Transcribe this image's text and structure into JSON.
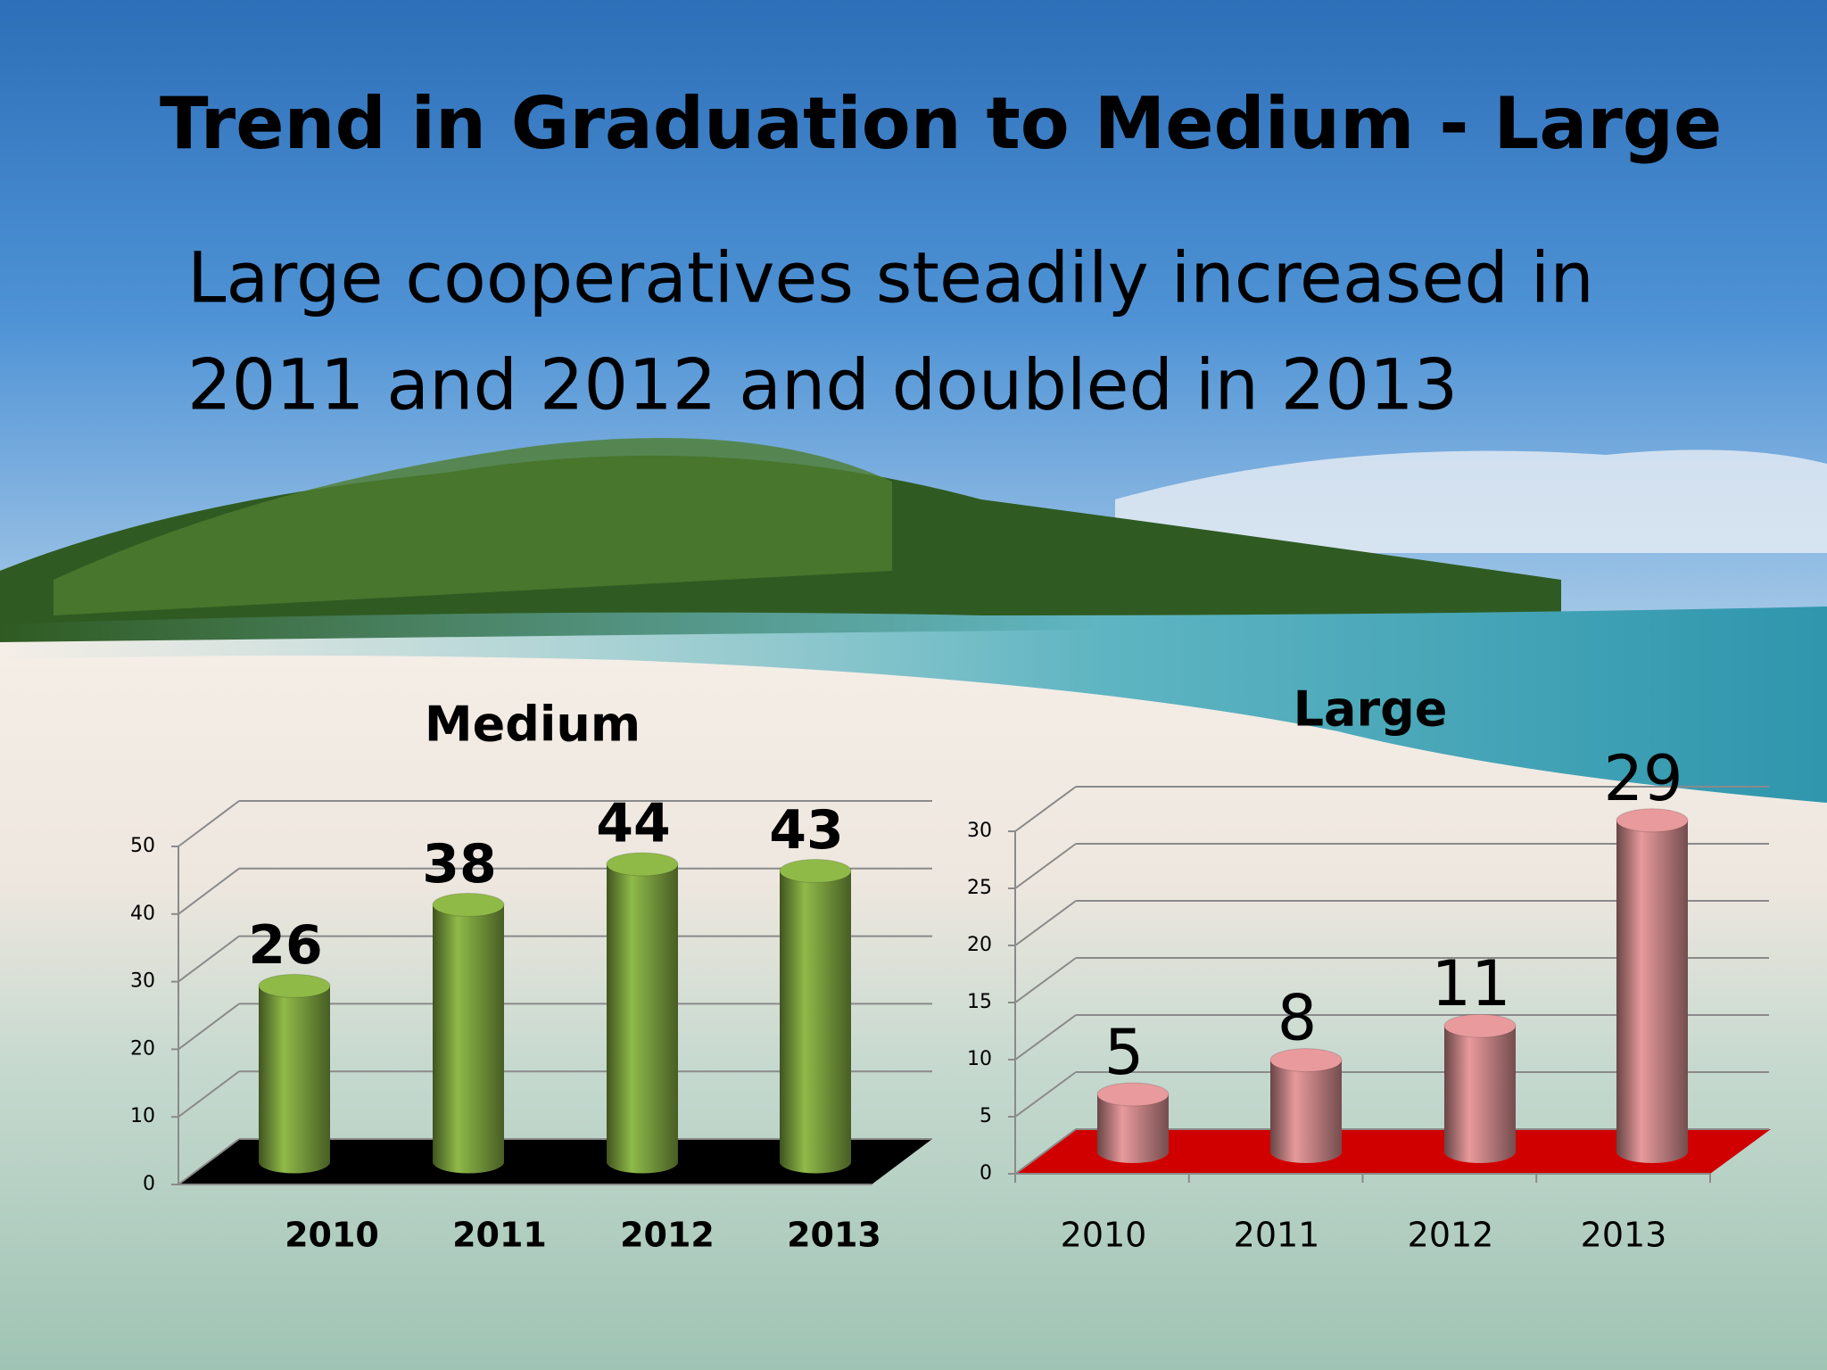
{
  "title": "Trend in Graduation to  Medium - Large",
  "subtitle": [
    "Large cooperatives steadily  increased in",
    "2011 and 2012 and doubled in 2013"
  ],
  "chart_data": [
    {
      "type": "bar",
      "title": "Medium",
      "categories": [
        "2010",
        "2011",
        "2012",
        "2013"
      ],
      "values": [
        26,
        38,
        44,
        43
      ],
      "color": "#8fba48",
      "floor_color": "#000000",
      "ylim": [
        0,
        50
      ],
      "yticks": [
        0,
        10,
        20,
        30,
        40,
        50
      ],
      "grid": true
    },
    {
      "type": "bar",
      "title": "Large",
      "categories": [
        "2010",
        "2011",
        "2012",
        "2013"
      ],
      "values": [
        5,
        8,
        11,
        29
      ],
      "color": "#e89a9c",
      "floor_color": "#d10000",
      "ylim": [
        0,
        30
      ],
      "yticks": [
        0,
        5,
        10,
        15,
        20,
        25,
        30
      ],
      "grid": true
    }
  ]
}
